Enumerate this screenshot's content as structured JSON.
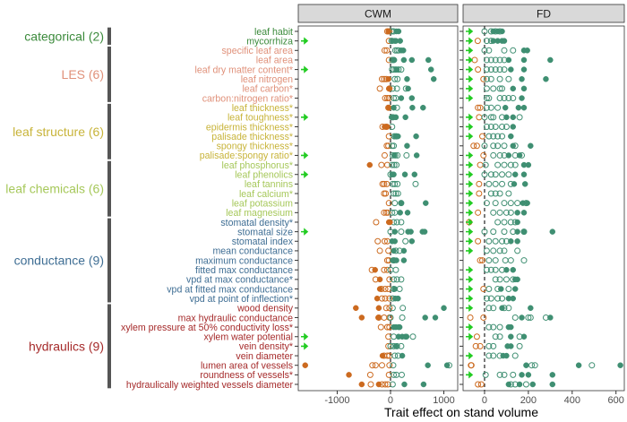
{
  "chart_data": {
    "type": "scatter",
    "xlabel": "Trait effect on stand volume",
    "ylabel": "",
    "panels": [
      {
        "name": "CWM",
        "xlim": [
          -1730,
          1260
        ],
        "ticks": [
          -1000,
          0,
          1000
        ],
        "tick_labels": [
          "-1000",
          "0",
          "1000"
        ]
      },
      {
        "name": "FD",
        "xlim": [
          -98,
          638
        ],
        "ticks": [
          0,
          200,
          400,
          600
        ],
        "tick_labels": [
          "0",
          "200",
          "400",
          "600"
        ]
      }
    ],
    "reference_line": 0,
    "colors": {
      "negative": "#cc6a1f",
      "positive": "#3f8f72",
      "arrow": "#22cc22",
      "group_bar": "#555555"
    },
    "point_legend": {
      "color": "sign of effect (orange negative, green positive)",
      "fill": "filled = significant, open = not significant"
    },
    "groups": [
      {
        "label": "categorical (2)",
        "color": "#3b8a3b",
        "rows": [
          0,
          1
        ]
      },
      {
        "label": "LES (6)",
        "color": "#e0917a",
        "rows": [
          2,
          7
        ]
      },
      {
        "label": "leaf structure (6)",
        "color": "#c8b43a",
        "rows": [
          8,
          13
        ]
      },
      {
        "label": "leaf chemicals (6)",
        "color": "#a6c85a",
        "rows": [
          14,
          19
        ]
      },
      {
        "label": "conductance (9)",
        "color": "#3f6e94",
        "rows": [
          20,
          28
        ]
      },
      {
        "label": "hydraulics (9)",
        "color": "#a52a2a",
        "rows": [
          29,
          37
        ]
      }
    ],
    "traits": [
      {
        "label": "leaf habit",
        "cwm_arrow": false,
        "fd_arrow": true,
        "cwm_open": [
          -60,
          -20,
          20,
          60
        ],
        "cwm_filled": [
          -40,
          110,
          150
        ],
        "fd_open": [
          0,
          30,
          50,
          70
        ],
        "fd_filled": [
          40,
          60,
          80
        ]
      },
      {
        "label": "mycorrhiza",
        "cwm_arrow": true,
        "fd_arrow": true,
        "cwm_open": [
          -30,
          20
        ],
        "cwm_filled": [
          40,
          80,
          100,
          180
        ],
        "fd_open": [
          -31,
          10,
          30
        ],
        "fd_filled": [
          40,
          60,
          80,
          90
        ]
      },
      {
        "label": "specific leaf area",
        "cwm_arrow": false,
        "fd_arrow": true,
        "cwm_open": [
          -110,
          -70,
          90,
          120,
          150
        ],
        "cwm_filled": [
          200,
          240
        ],
        "fd_open": [
          0,
          20,
          90,
          130
        ],
        "fd_filled": [
          180,
          195
        ]
      },
      {
        "label": "leaf area",
        "cwm_arrow": false,
        "fd_arrow": true,
        "cwm_open": [
          -30,
          30,
          60
        ],
        "cwm_filled": [
          70,
          250,
          400,
          710
        ],
        "fd_open": [
          -45,
          10,
          30,
          50,
          70,
          90
        ],
        "fd_filled": [
          110,
          180,
          300
        ]
      },
      {
        "label": "leaf dry matter content*",
        "cwm_arrow": true,
        "fd_arrow": true,
        "cwm_open": [
          30,
          60,
          100,
          150,
          200
        ],
        "cwm_filled": [
          120,
          760
        ],
        "fd_open": [
          -30,
          10,
          30,
          50,
          70,
          90
        ],
        "fd_filled": [
          120,
          180
        ]
      },
      {
        "label": "leaf nitrogen",
        "cwm_arrow": false,
        "fd_arrow": true,
        "cwm_open": [
          -160,
          -120,
          -80,
          80,
          130
        ],
        "cwm_filled": [
          -40,
          310,
          810
        ],
        "fd_open": [
          -5,
          10,
          30,
          70,
          110
        ],
        "fd_filled": [
          170,
          280
        ]
      },
      {
        "label": "leaf carbon*",
        "cwm_arrow": false,
        "fd_arrow": true,
        "cwm_open": [
          -200,
          -20,
          40,
          120,
          290
        ],
        "cwm_filled": [
          -30,
          330
        ],
        "fd_open": [
          10,
          40,
          70,
          80
        ],
        "fd_filled": [
          130,
          180
        ]
      },
      {
        "label": "carbon:nitrogen ratio*",
        "cwm_arrow": false,
        "fd_arrow": true,
        "cwm_open": [
          -100,
          -60,
          -30,
          60,
          100
        ],
        "cwm_filled": [
          200,
          400
        ],
        "fd_open": [
          10,
          20,
          70,
          90,
          110,
          130
        ],
        "fd_filled": [
          170
        ]
      },
      {
        "label": "leaf thickness*",
        "cwm_arrow": false,
        "fd_arrow": false,
        "cwm_open": [
          -40,
          120
        ],
        "cwm_filled": [
          -30,
          60,
          410,
          610
        ],
        "fd_open": [
          -30,
          -20,
          10,
          30,
          60
        ],
        "fd_filled": [
          95,
          155,
          180
        ]
      },
      {
        "label": "leaf toughness*",
        "cwm_arrow": true,
        "fd_arrow": true,
        "cwm_open": [
          40
        ],
        "cwm_filled": [
          20,
          60,
          100,
          280
        ],
        "fd_open": [
          -25,
          0,
          30,
          40,
          80,
          160
        ],
        "fd_filled": [
          100,
          130
        ]
      },
      {
        "label": "epidermis thickness*",
        "cwm_arrow": false,
        "fd_arrow": true,
        "cwm_open": [
          -150,
          -80,
          30
        ],
        "cwm_filled": [
          -110,
          -60
        ],
        "fd_open": [
          10,
          30,
          50,
          80,
          100
        ],
        "fd_filled": [
          130
        ]
      },
      {
        "label": "palisade thickness*",
        "cwm_arrow": false,
        "fd_arrow": true,
        "cwm_open": [
          -30,
          70,
          110
        ],
        "cwm_filled": [
          90,
          140,
          480
        ],
        "fd_open": [
          -10,
          20,
          40,
          60,
          80
        ],
        "fd_filled": [
          120
        ]
      },
      {
        "label": "spongy thickness*",
        "cwm_arrow": false,
        "fd_arrow": false,
        "cwm_open": [
          -70,
          -40,
          30,
          60
        ],
        "cwm_filled": [
          310
        ],
        "fd_open": [
          -50,
          -35,
          0,
          40,
          60,
          90,
          140
        ],
        "fd_filled": [
          130,
          210
        ]
      },
      {
        "label": "palisade:spongy ratio*",
        "cwm_arrow": true,
        "fd_arrow": true,
        "cwm_open": [
          -110,
          40,
          90,
          130,
          300
        ],
        "cwm_filled": [
          70,
          490
        ],
        "fd_open": [
          -5,
          40,
          70,
          90,
          140,
          170
        ],
        "fd_filled": [
          110,
          160
        ]
      },
      {
        "label": "leaf phosphorus*",
        "cwm_arrow": false,
        "fd_arrow": true,
        "cwm_open": [
          -170,
          -60,
          30,
          70,
          110
        ],
        "cwm_filled": [
          -390
        ],
        "fd_open": [
          -20,
          5,
          60,
          90,
          120,
          140
        ],
        "fd_filled": [
          180,
          200
        ]
      },
      {
        "label": "leaf phenolics",
        "cwm_arrow": true,
        "fd_arrow": true,
        "cwm_open": [
          0
        ],
        "cwm_filled": [
          30,
          60,
          270,
          450
        ],
        "fd_open": [
          0,
          30,
          50,
          80,
          110
        ],
        "fd_filled": [
          140,
          180
        ]
      },
      {
        "label": "leaf tannins",
        "cwm_arrow": false,
        "fd_arrow": true,
        "cwm_open": [
          -150,
          -120,
          -70,
          40,
          80,
          130,
          470
        ],
        "cwm_filled": [],
        "fd_open": [
          -25,
          20,
          50,
          80,
          120
        ],
        "fd_filled": [
          135,
          185
        ]
      },
      {
        "label": "leaf calcium*",
        "cwm_arrow": false,
        "fd_arrow": true,
        "cwm_open": [
          -120,
          -90,
          60,
          100,
          140
        ],
        "cwm_filled": [],
        "fd_open": [
          -25,
          30,
          50,
          70,
          110
        ],
        "fd_filled": []
      },
      {
        "label": "leaf potassium",
        "cwm_arrow": false,
        "fd_arrow": true,
        "cwm_open": [
          -30,
          80,
          200
        ],
        "cwm_filled": [
          200,
          660
        ],
        "fd_open": [
          10,
          50,
          90,
          120,
          150,
          190
        ],
        "fd_filled": [
          175,
          195
        ]
      },
      {
        "label": "leaf magnesium",
        "cwm_arrow": false,
        "fd_arrow": true,
        "cwm_open": [
          -120,
          -80,
          -50,
          30,
          80
        ],
        "cwm_filled": [
          180,
          320
        ],
        "fd_open": [
          -30,
          40,
          70,
          100,
          120
        ],
        "fd_filled": [
          150,
          180
        ]
      },
      {
        "label": "stomatal density*",
        "cwm_arrow": false,
        "fd_arrow": true,
        "cwm_open": [
          -270,
          60,
          120,
          200
        ],
        "cwm_filled": [
          -30,
          -10
        ],
        "fd_open": [
          -70,
          60,
          90,
          120,
          140
        ],
        "fd_filled": [
          150
        ]
      },
      {
        "label": "stomatal size",
        "cwm_arrow": true,
        "fd_arrow": true,
        "cwm_open": [
          0,
          200
        ],
        "cwm_filled": [
          80,
          330,
          380,
          600,
          640
        ],
        "fd_open": [
          0,
          40,
          90,
          130,
          180
        ],
        "fd_filled": [
          150,
          180,
          310
        ]
      },
      {
        "label": "stomatal index",
        "cwm_arrow": false,
        "fd_arrow": true,
        "cwm_open": [
          -240,
          -110,
          -60,
          280
        ],
        "cwm_filled": [
          30,
          80,
          400
        ],
        "fd_open": [
          -30,
          20,
          50,
          80,
          100
        ],
        "fd_filled": [
          120,
          150
        ]
      },
      {
        "label": "mean conductance",
        "cwm_arrow": false,
        "fd_arrow": true,
        "cwm_open": [
          -200,
          -40,
          100,
          170
        ],
        "cwm_filled": [
          60,
          250
        ],
        "fd_open": [
          10,
          40,
          70,
          90,
          150
        ],
        "fd_filled": []
      },
      {
        "label": "maximum conductance",
        "cwm_arrow": false,
        "fd_arrow": false,
        "cwm_open": [
          -60,
          -30,
          60
        ],
        "cwm_filled": [
          40,
          80,
          110,
          250
        ],
        "fd_open": [
          -20,
          -10,
          20,
          50,
          95,
          120,
          180
        ],
        "fd_filled": []
      },
      {
        "label": "fitted max conductance",
        "cwm_arrow": false,
        "fd_arrow": true,
        "cwm_open": [
          -350,
          -120,
          -60,
          0,
          100
        ],
        "cwm_filled": [
          -290
        ],
        "fd_open": [
          10,
          30,
          50,
          80
        ],
        "fd_filled": [
          100,
          130
        ]
      },
      {
        "label": "vpd at max conductance*",
        "cwm_arrow": false,
        "fd_arrow": true,
        "cwm_open": [
          -280,
          -20,
          60,
          120,
          200
        ],
        "cwm_filled": [
          -200
        ],
        "fd_open": [
          50,
          70,
          100,
          130
        ],
        "fd_filled": [
          140,
          150
        ]
      },
      {
        "label": "vpd at fitted max conductance",
        "cwm_arrow": false,
        "fd_arrow": true,
        "cwm_open": [
          -170,
          -100,
          -40,
          60,
          170
        ],
        "cwm_filled": [
          -200,
          80
        ],
        "fd_open": [
          -5,
          20,
          60,
          110
        ],
        "fd_filled": [
          75,
          140
        ]
      },
      {
        "label": "vpd at point of inflection*",
        "cwm_arrow": false,
        "fd_arrow": true,
        "cwm_open": [
          -160,
          -100,
          -20,
          40
        ],
        "cwm_filled": [
          -250,
          90,
          140
        ],
        "fd_open": [
          10,
          30,
          60,
          80
        ],
        "fd_filled": [
          110,
          130
        ]
      },
      {
        "label": "wood density",
        "cwm_arrow": false,
        "fd_arrow": true,
        "cwm_open": [
          -80,
          -20,
          40,
          230
        ],
        "cwm_filled": [
          -650,
          -220,
          1000
        ],
        "fd_open": [
          20,
          40,
          90,
          110
        ],
        "fd_filled": [
          80,
          210
        ]
      },
      {
        "label": "max hydraulic conductance",
        "cwm_arrow": false,
        "fd_arrow": false,
        "cwm_open": [
          -220,
          -120,
          -20,
          0,
          220
        ],
        "cwm_filled": [
          -540,
          -230,
          650,
          840
        ],
        "fd_open": [
          -65,
          -5,
          140,
          200,
          210,
          280
        ],
        "fd_filled": [
          170,
          300
        ]
      },
      {
        "label": "xylem pressure at 50% conductivity loss*",
        "cwm_arrow": false,
        "fd_arrow": true,
        "cwm_open": [
          -180,
          -60,
          -20
        ],
        "cwm_filled": [
          60,
          100,
          150,
          170
        ],
        "fd_open": [
          20,
          40,
          70
        ],
        "fd_filled": [
          110,
          120
        ]
      },
      {
        "label": "xylem water potential",
        "cwm_arrow": true,
        "fd_arrow": true,
        "cwm_open": [
          -40,
          60,
          420
        ],
        "cwm_filled": [
          150,
          220,
          280,
          300
        ],
        "fd_open": [
          -35,
          50,
          70,
          160
        ],
        "fd_filled": [
          120,
          180
        ]
      },
      {
        "label": "vein density*",
        "cwm_arrow": true,
        "fd_arrow": false,
        "cwm_open": [
          -40,
          0,
          60,
          120,
          200
        ],
        "cwm_filled": [
          100
        ],
        "fd_open": [
          -40,
          -20,
          20,
          40,
          160
        ],
        "fd_filled": [
          105,
          120
        ]
      },
      {
        "label": "vein diameter",
        "cwm_arrow": false,
        "fd_arrow": true,
        "cwm_open": [
          -120,
          -60,
          -20,
          80,
          140
        ],
        "cwm_filled": [
          -150,
          220
        ],
        "fd_open": [
          20,
          40,
          70,
          140
        ],
        "fd_filled": [
          85,
          100
        ]
      },
      {
        "label": "lumen area of vessels",
        "cwm_arrow": false,
        "fd_arrow": false,
        "cwm_open": [
          -340,
          -280,
          -160,
          -20,
          50,
          1100
        ],
        "cwm_filled": [
          -1600,
          700,
          1060
        ],
        "fd_open": [
          -62,
          -60,
          215,
          230,
          490
        ],
        "fd_filled": [
          190,
          430,
          620
        ]
      },
      {
        "label": "roundness of vessels*",
        "cwm_arrow": false,
        "fd_arrow": true,
        "cwm_open": [
          -380,
          -30,
          60,
          110,
          210
        ],
        "cwm_filled": [
          -780
        ],
        "fd_open": [
          5,
          70,
          90,
          130
        ],
        "fd_filled": [
          170,
          200,
          310
        ]
      },
      {
        "label": "hydraulically weighted vessels diameter",
        "cwm_arrow": false,
        "fd_arrow": false,
        "cwm_open": [
          -370,
          -160,
          -100,
          -50,
          40
        ],
        "cwm_filled": [
          -540,
          -220,
          260,
          620
        ],
        "fd_open": [
          -30,
          -15,
          120,
          140,
          190
        ],
        "fd_filled": [
          110,
          160,
          220,
          310
        ]
      }
    ]
  }
}
